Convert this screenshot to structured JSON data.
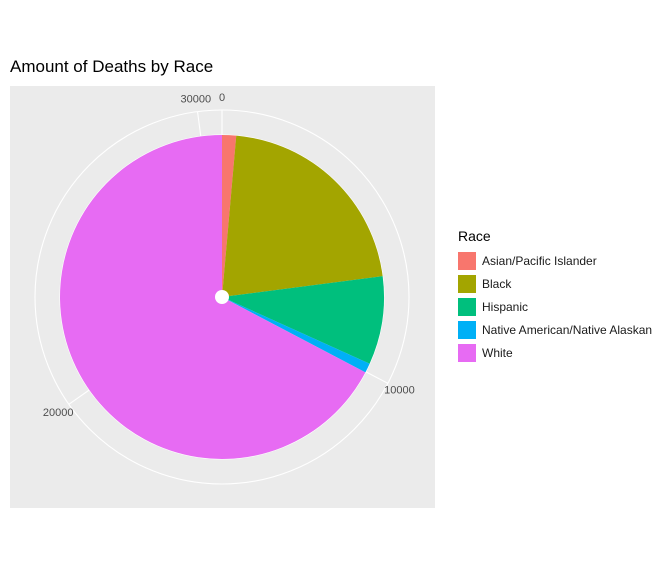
{
  "chart_data": {
    "type": "pie",
    "title": "Amount of Deaths by Race",
    "legend_title": "Race",
    "legend_position": "right",
    "categories": [
      "Asian/Pacific Islander",
      "Black",
      "Hispanic",
      "Native American/Native Alaskan",
      "White"
    ],
    "values": [
      430,
      6600,
      2700,
      290,
      20620
    ],
    "colors": [
      "#F8766D",
      "#A3A500",
      "#00BF7D",
      "#00B0F6",
      "#E76BF3"
    ],
    "axis_ticks": [
      0,
      10000,
      20000,
      30000
    ],
    "axis_tick_labels": [
      "0",
      "10000",
      "20000",
      "30000"
    ],
    "axis_max": 30640,
    "grid": true,
    "panel_color": "#EBEBEB"
  }
}
